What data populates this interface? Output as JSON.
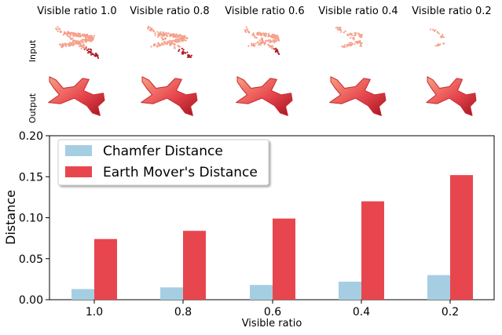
{
  "columns": [
    {
      "label": "Visible ratio 1.0",
      "ratio": 1.0
    },
    {
      "label": "Visible ratio 0.8",
      "ratio": 0.8
    },
    {
      "label": "Visible ratio 0.6",
      "ratio": 0.6
    },
    {
      "label": "Visible ratio 0.4",
      "ratio": 0.4
    },
    {
      "label": "Visible ratio 0.2",
      "ratio": 0.2
    }
  ],
  "rows": [
    {
      "label": "Input"
    },
    {
      "label": "Output"
    }
  ],
  "colors": {
    "chamfer": "#a6cee3",
    "emd": "#e8464e",
    "point_light": "#f5a08a",
    "point_dark": "#b01a24"
  },
  "chart_data": {
    "type": "bar",
    "categories": [
      "1.0",
      "0.8",
      "0.6",
      "0.4",
      "0.2"
    ],
    "series": [
      {
        "name": "Chamfer Distance",
        "values": [
          0.013,
          0.015,
          0.018,
          0.022,
          0.03
        ]
      },
      {
        "name": "Earth Mover's Distance",
        "values": [
          0.074,
          0.084,
          0.099,
          0.12,
          0.152
        ]
      }
    ],
    "xlabel": "Visible ratio",
    "ylabel": "Distance",
    "ylim": [
      0,
      0.2
    ],
    "yticks": [
      "0.00",
      "0.05",
      "0.10",
      "0.15",
      "0.20"
    ],
    "legend": "top-left",
    "grid": false
  }
}
